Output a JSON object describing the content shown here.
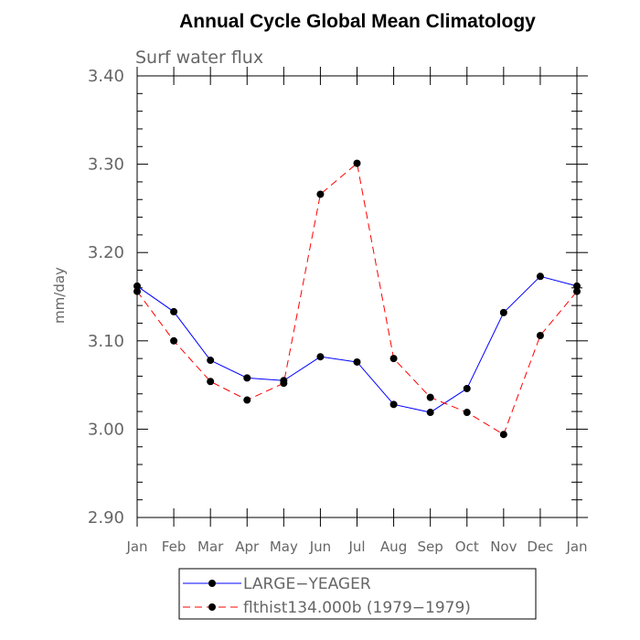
{
  "chart_data": {
    "type": "line",
    "title": "Annual Cycle Global Mean Climatology",
    "subtitle": "Surf water flux",
    "xlabel": "",
    "ylabel": "mm/day",
    "categories": [
      "Jan",
      "Feb",
      "Mar",
      "Apr",
      "May",
      "Jun",
      "Jul",
      "Aug",
      "Sep",
      "Oct",
      "Nov",
      "Dec",
      "Jan"
    ],
    "ylim": [
      2.9,
      3.4
    ],
    "yticks": [
      "3.40",
      "3.30",
      "3.20",
      "3.10",
      "3.00",
      "2.90"
    ],
    "ytick_values": [
      3.4,
      3.3,
      3.2,
      3.1,
      3.0,
      2.9
    ],
    "grid": false,
    "legend_position": "bottom",
    "series": [
      {
        "name": "LARGE−YEAGER",
        "color": "#0000ff",
        "line_style": "solid",
        "marker": "filled-circle",
        "values": [
          3.162,
          3.133,
          3.078,
          3.058,
          3.055,
          3.082,
          3.076,
          3.028,
          3.019,
          3.046,
          3.132,
          3.173,
          3.162
        ]
      },
      {
        "name": "flthist134.000b (1979−1979)",
        "color": "#ff0000",
        "line_style": "dashed",
        "marker": "filled-circle",
        "values": [
          3.156,
          3.1,
          3.054,
          3.033,
          3.052,
          3.266,
          3.301,
          3.08,
          3.036,
          3.019,
          2.994,
          3.106,
          3.156
        ]
      }
    ]
  }
}
